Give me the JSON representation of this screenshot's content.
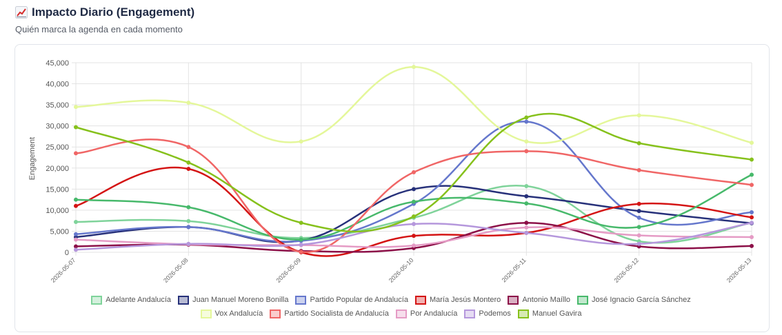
{
  "header": {
    "title": "Impacto Diario (Engagement)",
    "subtitle": "Quién marca la agenda en cada momento",
    "icon": "chart-trend-up-icon"
  },
  "chart_data": {
    "type": "line",
    "ylabel": "Engagement",
    "ylim": [
      0,
      45000
    ],
    "yticks": [
      0,
      5000,
      10000,
      15000,
      20000,
      25000,
      30000,
      35000,
      40000,
      45000
    ],
    "ytick_labels": [
      "0",
      "5,000",
      "10,000",
      "15,000",
      "20,000",
      "25,000",
      "30,000",
      "35,000",
      "40,000",
      "45,000"
    ],
    "grid": true,
    "legend_position": "bottom",
    "x": [
      "2026-05-07",
      "2026-05-08",
      "2026-05-09",
      "2026-05-10",
      "2026-05-11",
      "2026-05-12",
      "2026-05-13"
    ],
    "series": [
      {
        "name": "Adelante Andalucía",
        "color": "#7fd39a",
        "values": [
          7200,
          7400,
          3400,
          8200,
          15700,
          2600,
          7000
        ]
      },
      {
        "name": "Juan Manuel Moreno Bonilla",
        "color": "#27317a",
        "values": [
          3600,
          6000,
          2800,
          15000,
          13300,
          9800,
          6900
        ]
      },
      {
        "name": "Partido Popular de Andalucía",
        "color": "#6577cc",
        "values": [
          4300,
          6000,
          2700,
          11500,
          31000,
          8200,
          9500
        ]
      },
      {
        "name": "María Jesús Montero",
        "color": "#d41414",
        "values": [
          11000,
          19800,
          0,
          3900,
          4600,
          11500,
          8300
        ]
      },
      {
        "name": "Antonio Maíllo",
        "color": "#8c1048",
        "values": [
          1400,
          1800,
          300,
          1000,
          7000,
          1400,
          1500
        ]
      },
      {
        "name": "José Ignacio García Sánchez",
        "color": "#47b96b",
        "values": [
          12500,
          10700,
          3000,
          12000,
          11600,
          6000,
          18400
        ]
      },
      {
        "name": "Vox Andalucía",
        "color": "#e4f79a",
        "values": [
          34500,
          35500,
          26300,
          44000,
          26300,
          32500,
          26000
        ]
      },
      {
        "name": "Partido Socialista de Andalucía",
        "color": "#f06666",
        "values": [
          23500,
          25000,
          100,
          19000,
          24000,
          19500,
          16000
        ]
      },
      {
        "name": "Por Andalucía",
        "color": "#e59bc5",
        "values": [
          3000,
          1900,
          1700,
          1600,
          5900,
          4000,
          3600
        ]
      },
      {
        "name": "Podemos",
        "color": "#b597dc",
        "values": [
          600,
          2000,
          1800,
          6700,
          4600,
          2000,
          7000
        ]
      },
      {
        "name": "Manuel Gavira",
        "color": "#86c11c",
        "values": [
          29700,
          21300,
          7000,
          8500,
          32000,
          25900,
          22000
        ]
      }
    ]
  }
}
